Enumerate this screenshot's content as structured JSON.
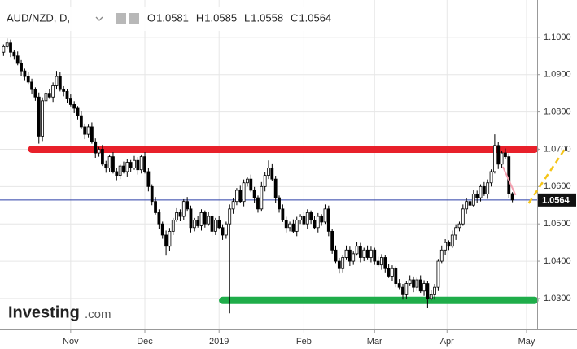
{
  "chart_data": {
    "type": "candlestick",
    "header": {
      "symbol": "AUD/NZD, D,",
      "open_label": "O",
      "high_label": "H",
      "low_label": "L",
      "close_label": "C"
    },
    "logo": {
      "brand": "Investing",
      "suffix": ".com"
    },
    "open": [
      1.096,
      1.0975,
      1.0985,
      1.096,
      1.095,
      1.093,
      1.091,
      1.0895,
      1.088,
      1.086,
      1.084,
      1.0735,
      1.083,
      1.085,
      1.084,
      1.087,
      1.0895,
      1.086,
      1.0855,
      1.0835,
      1.082,
      1.081,
      1.079,
      1.076,
      1.074,
      1.076,
      1.072,
      1.069,
      1.07,
      1.066,
      1.065,
      1.068,
      1.064,
      1.063,
      1.0655,
      1.064,
      1.0665,
      1.065,
      1.067,
      1.0645,
      1.068,
      1.064,
      1.06,
      1.056,
      1.053,
      1.05,
      1.047,
      1.044,
      1.048,
      1.051,
      1.053,
      1.052,
      1.056,
      1.054,
      1.049,
      1.051,
      1.0495,
      1.053,
      1.05,
      1.052,
      1.048,
      1.051,
      1.049,
      1.047,
      1.05,
      1.054,
      1.056,
      1.059,
      1.056,
      1.061,
      1.062,
      1.059,
      1.057,
      1.054,
      1.06,
      1.063,
      1.065,
      1.062,
      1.057,
      1.054,
      1.051,
      1.049,
      1.05,
      1.048,
      1.051,
      1.052,
      1.05,
      1.053,
      1.051,
      1.049,
      1.052,
      1.0505,
      1.054,
      1.048,
      1.043,
      1.04,
      1.038,
      1.041,
      1.043,
      1.04,
      1.042,
      1.044,
      1.041,
      1.043,
      1.041,
      1.043,
      1.04,
      1.039,
      1.041,
      1.038,
      1.036,
      1.038,
      1.034,
      1.033,
      1.031,
      1.034,
      1.035,
      1.033,
      1.035,
      1.032,
      1.034,
      1.03,
      1.031,
      1.033,
      1.04,
      1.043,
      1.045,
      1.044,
      1.047,
      1.049,
      1.05,
      1.054,
      1.056,
      1.055,
      1.058,
      1.057,
      1.06,
      1.058,
      1.061,
      1.064,
      1.071,
      1.066,
      1.069,
      1.068,
      1.0581
    ],
    "high": [
      1.0981,
      1.0997,
      1.0994,
      1.0966,
      1.0962,
      1.0939,
      1.0916,
      1.0907,
      1.0889,
      1.0866,
      1.0852,
      1.0839,
      1.0856,
      1.0862,
      1.0879,
      1.091,
      1.0907,
      1.0869,
      1.0861,
      1.0847,
      1.0829,
      1.0816,
      1.0802,
      1.0769,
      1.0766,
      1.0772,
      1.0729,
      1.0706,
      1.0712,
      1.0669,
      1.0686,
      1.0692,
      1.0649,
      1.0661,
      1.0667,
      1.0674,
      1.0671,
      1.0682,
      1.0679,
      1.0686,
      1.0692,
      1.0649,
      1.0606,
      1.0572,
      1.0539,
      1.0506,
      1.0482,
      1.0489,
      1.0516,
      1.0542,
      1.0539,
      1.0566,
      1.0572,
      1.0549,
      1.0516,
      1.0522,
      1.0539,
      1.0536,
      1.0532,
      1.0529,
      1.0516,
      1.0522,
      1.0499,
      1.0506,
      1.0552,
      1.0569,
      1.0596,
      1.0602,
      1.0619,
      1.0626,
      1.0632,
      1.0599,
      1.0576,
      1.0612,
      1.0639,
      1.067,
      1.0662,
      1.0629,
      1.0576,
      1.0552,
      1.0519,
      1.0506,
      1.0512,
      1.0519,
      1.0526,
      1.0532,
      1.0539,
      1.0536,
      1.0522,
      1.0529,
      1.0526,
      1.0552,
      1.0549,
      1.0486,
      1.0442,
      1.0409,
      1.0416,
      1.0442,
      1.0439,
      1.0426,
      1.0452,
      1.0449,
      1.0436,
      1.0442,
      1.0439,
      1.0436,
      1.0412,
      1.0419,
      1.0416,
      1.0392,
      1.0389,
      1.0386,
      1.0352,
      1.0339,
      1.0346,
      1.0362,
      1.0359,
      1.0356,
      1.0362,
      1.0349,
      1.0346,
      1.0322,
      1.0339,
      1.0406,
      1.0442,
      1.0459,
      1.0456,
      1.0482,
      1.0499,
      1.0506,
      1.0552,
      1.0569,
      1.0566,
      1.0592,
      1.0589,
      1.0606,
      1.0612,
      1.0619,
      1.0646,
      1.074,
      1.0719,
      1.0696,
      1.0702,
      1.0689,
      1.0585
    ],
    "low": [
      1.095,
      1.097,
      1.0947,
      1.094,
      1.0925,
      1.0897,
      1.0885,
      1.0875,
      1.0847,
      1.083,
      1.0715,
      1.0722,
      1.082,
      1.0835,
      1.0827,
      1.086,
      1.0855,
      1.0842,
      1.0825,
      1.0815,
      1.0797,
      1.078,
      1.0755,
      1.0727,
      1.073,
      1.0715,
      1.0677,
      1.068,
      1.0655,
      1.0637,
      1.064,
      1.0635,
      1.0617,
      1.062,
      1.0635,
      1.0627,
      1.064,
      1.0645,
      1.0632,
      1.0635,
      1.0635,
      1.0587,
      1.055,
      1.0525,
      1.0487,
      1.046,
      1.0415,
      1.0427,
      1.047,
      1.0505,
      1.0507,
      1.051,
      1.0535,
      1.0477,
      1.048,
      1.049,
      1.0482,
      1.049,
      1.0495,
      1.0467,
      1.047,
      1.0485,
      1.0457,
      1.046,
      1.026,
      1.0527,
      1.055,
      1.0555,
      1.0547,
      1.06,
      1.0585,
      1.0557,
      1.053,
      1.0535,
      1.0587,
      1.062,
      1.0615,
      1.0557,
      1.053,
      1.0505,
      1.0477,
      1.048,
      1.0475,
      1.0467,
      1.05,
      1.0495,
      1.0487,
      1.05,
      1.0485,
      1.0477,
      1.0495,
      1.05,
      1.0467,
      1.042,
      1.0395,
      1.0367,
      1.037,
      1.0405,
      1.0387,
      1.039,
      1.0415,
      1.0397,
      1.04,
      1.0405,
      1.0397,
      1.039,
      1.0385,
      1.0377,
      1.037,
      1.0355,
      1.0347,
      1.033,
      1.0325,
      1.0297,
      1.03,
      1.0335,
      1.0317,
      1.032,
      1.0315,
      1.0307,
      1.0275,
      1.0295,
      1.0297,
      1.032,
      1.0395,
      1.0417,
      1.043,
      1.0435,
      1.0457,
      1.048,
      1.0495,
      1.0527,
      1.054,
      1.0545,
      1.0557,
      1.056,
      1.0575,
      1.0567,
      1.06,
      1.0635,
      1.0647,
      1.065,
      1.0675,
      1.0568,
      1.0558
    ],
    "close": [
      1.0975,
      1.0985,
      1.096,
      1.095,
      1.093,
      1.091,
      1.0895,
      1.088,
      1.086,
      1.084,
      1.0735,
      1.083,
      1.085,
      1.084,
      1.087,
      1.0895,
      1.086,
      1.0855,
      1.0835,
      1.082,
      1.081,
      1.079,
      1.076,
      1.074,
      1.076,
      1.072,
      1.069,
      1.07,
      1.066,
      1.065,
      1.068,
      1.064,
      1.063,
      1.0655,
      1.064,
      1.0665,
      1.065,
      1.067,
      1.0645,
      1.068,
      1.064,
      1.06,
      1.056,
      1.053,
      1.05,
      1.047,
      1.044,
      1.048,
      1.051,
      1.053,
      1.052,
      1.056,
      1.054,
      1.049,
      1.051,
      1.0495,
      1.053,
      1.05,
      1.052,
      1.048,
      1.051,
      1.049,
      1.047,
      1.05,
      1.054,
      1.056,
      1.059,
      1.056,
      1.061,
      1.062,
      1.059,
      1.057,
      1.054,
      1.06,
      1.063,
      1.065,
      1.062,
      1.057,
      1.054,
      1.051,
      1.049,
      1.05,
      1.048,
      1.051,
      1.052,
      1.05,
      1.053,
      1.051,
      1.049,
      1.052,
      1.0505,
      1.054,
      1.048,
      1.043,
      1.04,
      1.038,
      1.041,
      1.043,
      1.04,
      1.042,
      1.044,
      1.041,
      1.043,
      1.041,
      1.043,
      1.04,
      1.039,
      1.041,
      1.038,
      1.036,
      1.038,
      1.034,
      1.033,
      1.031,
      1.034,
      1.035,
      1.033,
      1.035,
      1.032,
      1.034,
      1.03,
      1.031,
      1.033,
      1.04,
      1.043,
      1.045,
      1.044,
      1.047,
      1.049,
      1.05,
      1.054,
      1.056,
      1.055,
      1.058,
      1.057,
      1.06,
      1.058,
      1.061,
      1.064,
      1.071,
      1.066,
      1.069,
      1.068,
      1.0581,
      1.0564
    ],
    "levels": [
      {
        "value": 1.07,
        "from": 8,
        "color": "#e8202a"
      },
      {
        "value": 1.0295,
        "from": 62,
        "color": "#1fad4a"
      }
    ],
    "drawings": [
      {
        "x": [
          141.3,
          144.9
        ],
        "y": [
          1.0653,
          1.0577
        ],
        "color": "#f4a0b0",
        "dashed": false
      },
      {
        "x": [
          148.6,
          159
        ],
        "y": [
          1.0555,
          1.0703
        ],
        "color": "#f5c518",
        "dashed": true
      }
    ],
    "price_line_color": "#2b3fa8",
    "xlim": [
      -1,
      151
    ],
    "xticks": [
      {
        "value": 19,
        "label": "Nov"
      },
      {
        "value": 40,
        "label": "Dec"
      },
      {
        "value": 61,
        "label": "2019"
      },
      {
        "value": 85,
        "label": "Feb"
      },
      {
        "value": 105,
        "label": "Mar"
      },
      {
        "value": 125.5,
        "label": "Apr"
      },
      {
        "value": 148,
        "label": "May"
      }
    ],
    "ylim": [
      1.0217,
      1.11
    ],
    "yticks": [
      {
        "value": 1.03,
        "label": "1.0300"
      },
      {
        "value": 1.04,
        "label": "1.0400"
      },
      {
        "value": 1.05,
        "label": "1.0500"
      },
      {
        "value": 1.06,
        "label": "1.0600"
      },
      {
        "value": 1.07,
        "label": "1.0700"
      },
      {
        "value": 1.08,
        "label": "1.0800"
      },
      {
        "value": 1.09,
        "label": "1.0900"
      },
      {
        "value": 1.1,
        "label": "1.1000"
      }
    ],
    "grid": true
  }
}
